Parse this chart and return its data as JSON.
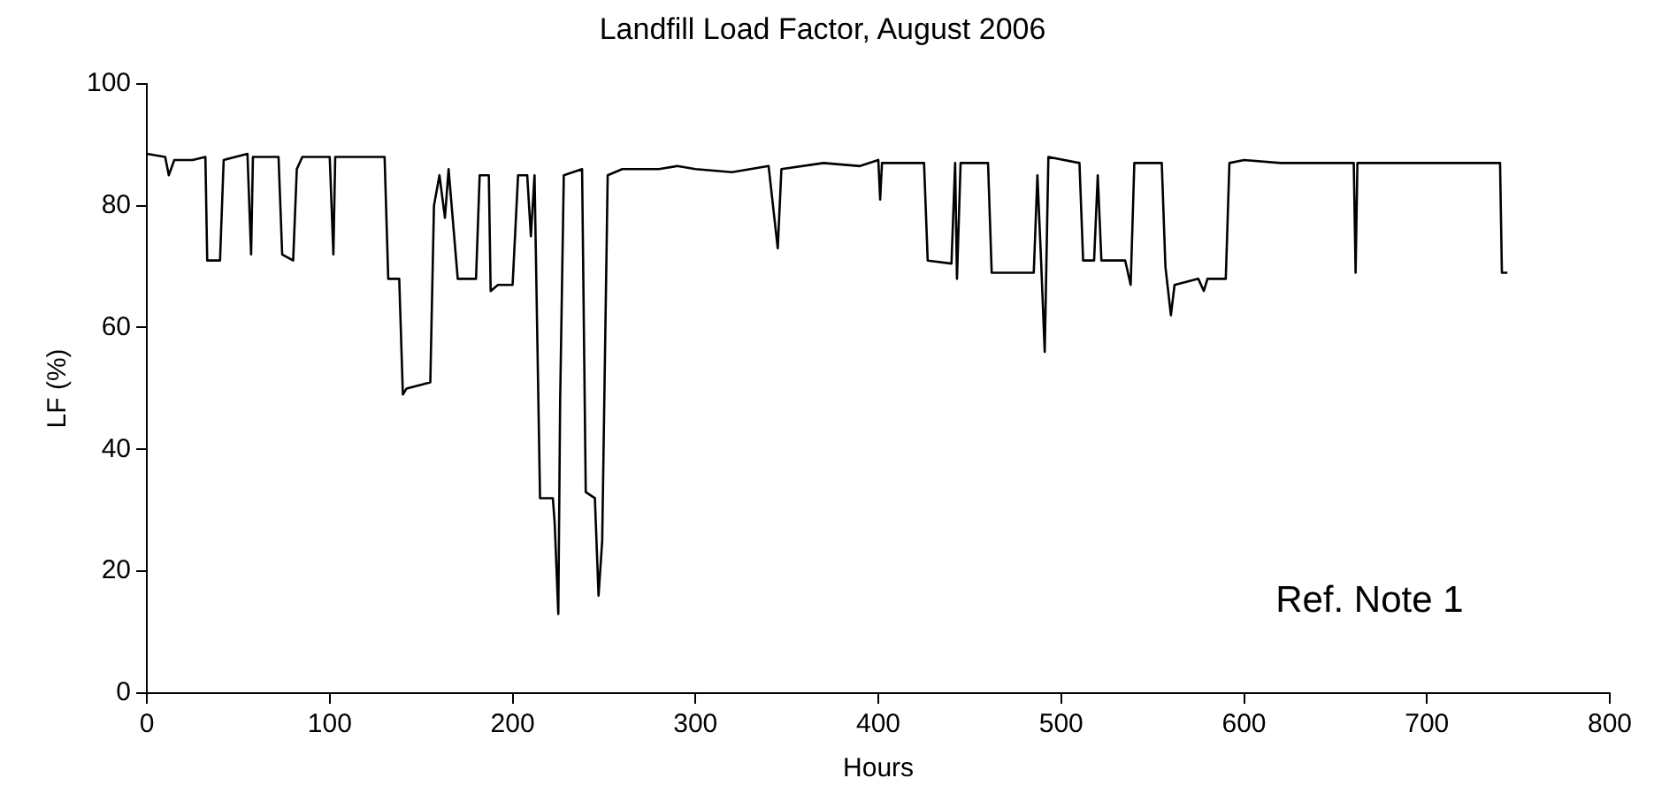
{
  "chart_data": {
    "type": "line",
    "title": "Landfill Load Factor, August 2006",
    "xlabel": "Hours",
    "ylabel": "LF (%)",
    "annotations": [
      "Ref. Note 1"
    ],
    "xlim": [
      0,
      800
    ],
    "xticks": [
      0,
      100,
      200,
      300,
      400,
      500,
      600,
      700,
      800
    ],
    "ylim": [
      0,
      100
    ],
    "yticks": [
      0,
      20,
      40,
      60,
      80,
      100
    ],
    "grid": false,
    "legend": false,
    "marker": "none",
    "line_style": "solid",
    "series": [
      {
        "color": "#000000",
        "x": [
          0,
          10,
          12,
          15,
          25,
          32,
          33,
          40,
          42,
          55,
          57,
          58,
          72,
          74,
          80,
          82,
          85,
          100,
          102,
          103,
          130,
          132,
          138,
          140,
          142,
          155,
          157,
          160,
          163,
          165,
          170,
          180,
          182,
          187,
          188,
          192,
          200,
          203,
          208,
          210,
          212,
          215,
          222,
          223,
          225,
          226,
          228,
          238,
          240,
          245,
          247,
          249,
          252,
          260,
          280,
          290,
          300,
          320,
          340,
          345,
          347,
          370,
          390,
          400,
          401,
          402,
          425,
          427,
          440,
          442,
          443,
          445,
          460,
          462,
          485,
          487,
          489,
          491,
          493,
          510,
          512,
          518,
          520,
          522,
          535,
          538,
          540,
          555,
          557,
          560,
          562,
          575,
          578,
          580,
          590,
          592,
          600,
          620,
          660,
          661,
          662,
          700,
          740,
          741,
          744
        ],
        "values": [
          88.5,
          88,
          85,
          87.5,
          87.5,
          88,
          71,
          71,
          87.5,
          88.5,
          72,
          88,
          88,
          72,
          71,
          86,
          88,
          88,
          72,
          88,
          88,
          68,
          68,
          49,
          50,
          51,
          80,
          85,
          78,
          86,
          68,
          68,
          85,
          85,
          66,
          67,
          67,
          85,
          85,
          75,
          85,
          32,
          32,
          28,
          13,
          48,
          85,
          86,
          33,
          32,
          16,
          25,
          85,
          86,
          86,
          86.5,
          86,
          85.5,
          86.5,
          73,
          86,
          87,
          86.5,
          87.5,
          81,
          87,
          87,
          71,
          70.5,
          87,
          68,
          87,
          87,
          69,
          69,
          85,
          71,
          56,
          88,
          87,
          71,
          71,
          85,
          71,
          71,
          67,
          87,
          87,
          70,
          62,
          67,
          68,
          66,
          68,
          68,
          87,
          87.5,
          87,
          87,
          69,
          87,
          87,
          87,
          69,
          69
        ]
      }
    ]
  }
}
